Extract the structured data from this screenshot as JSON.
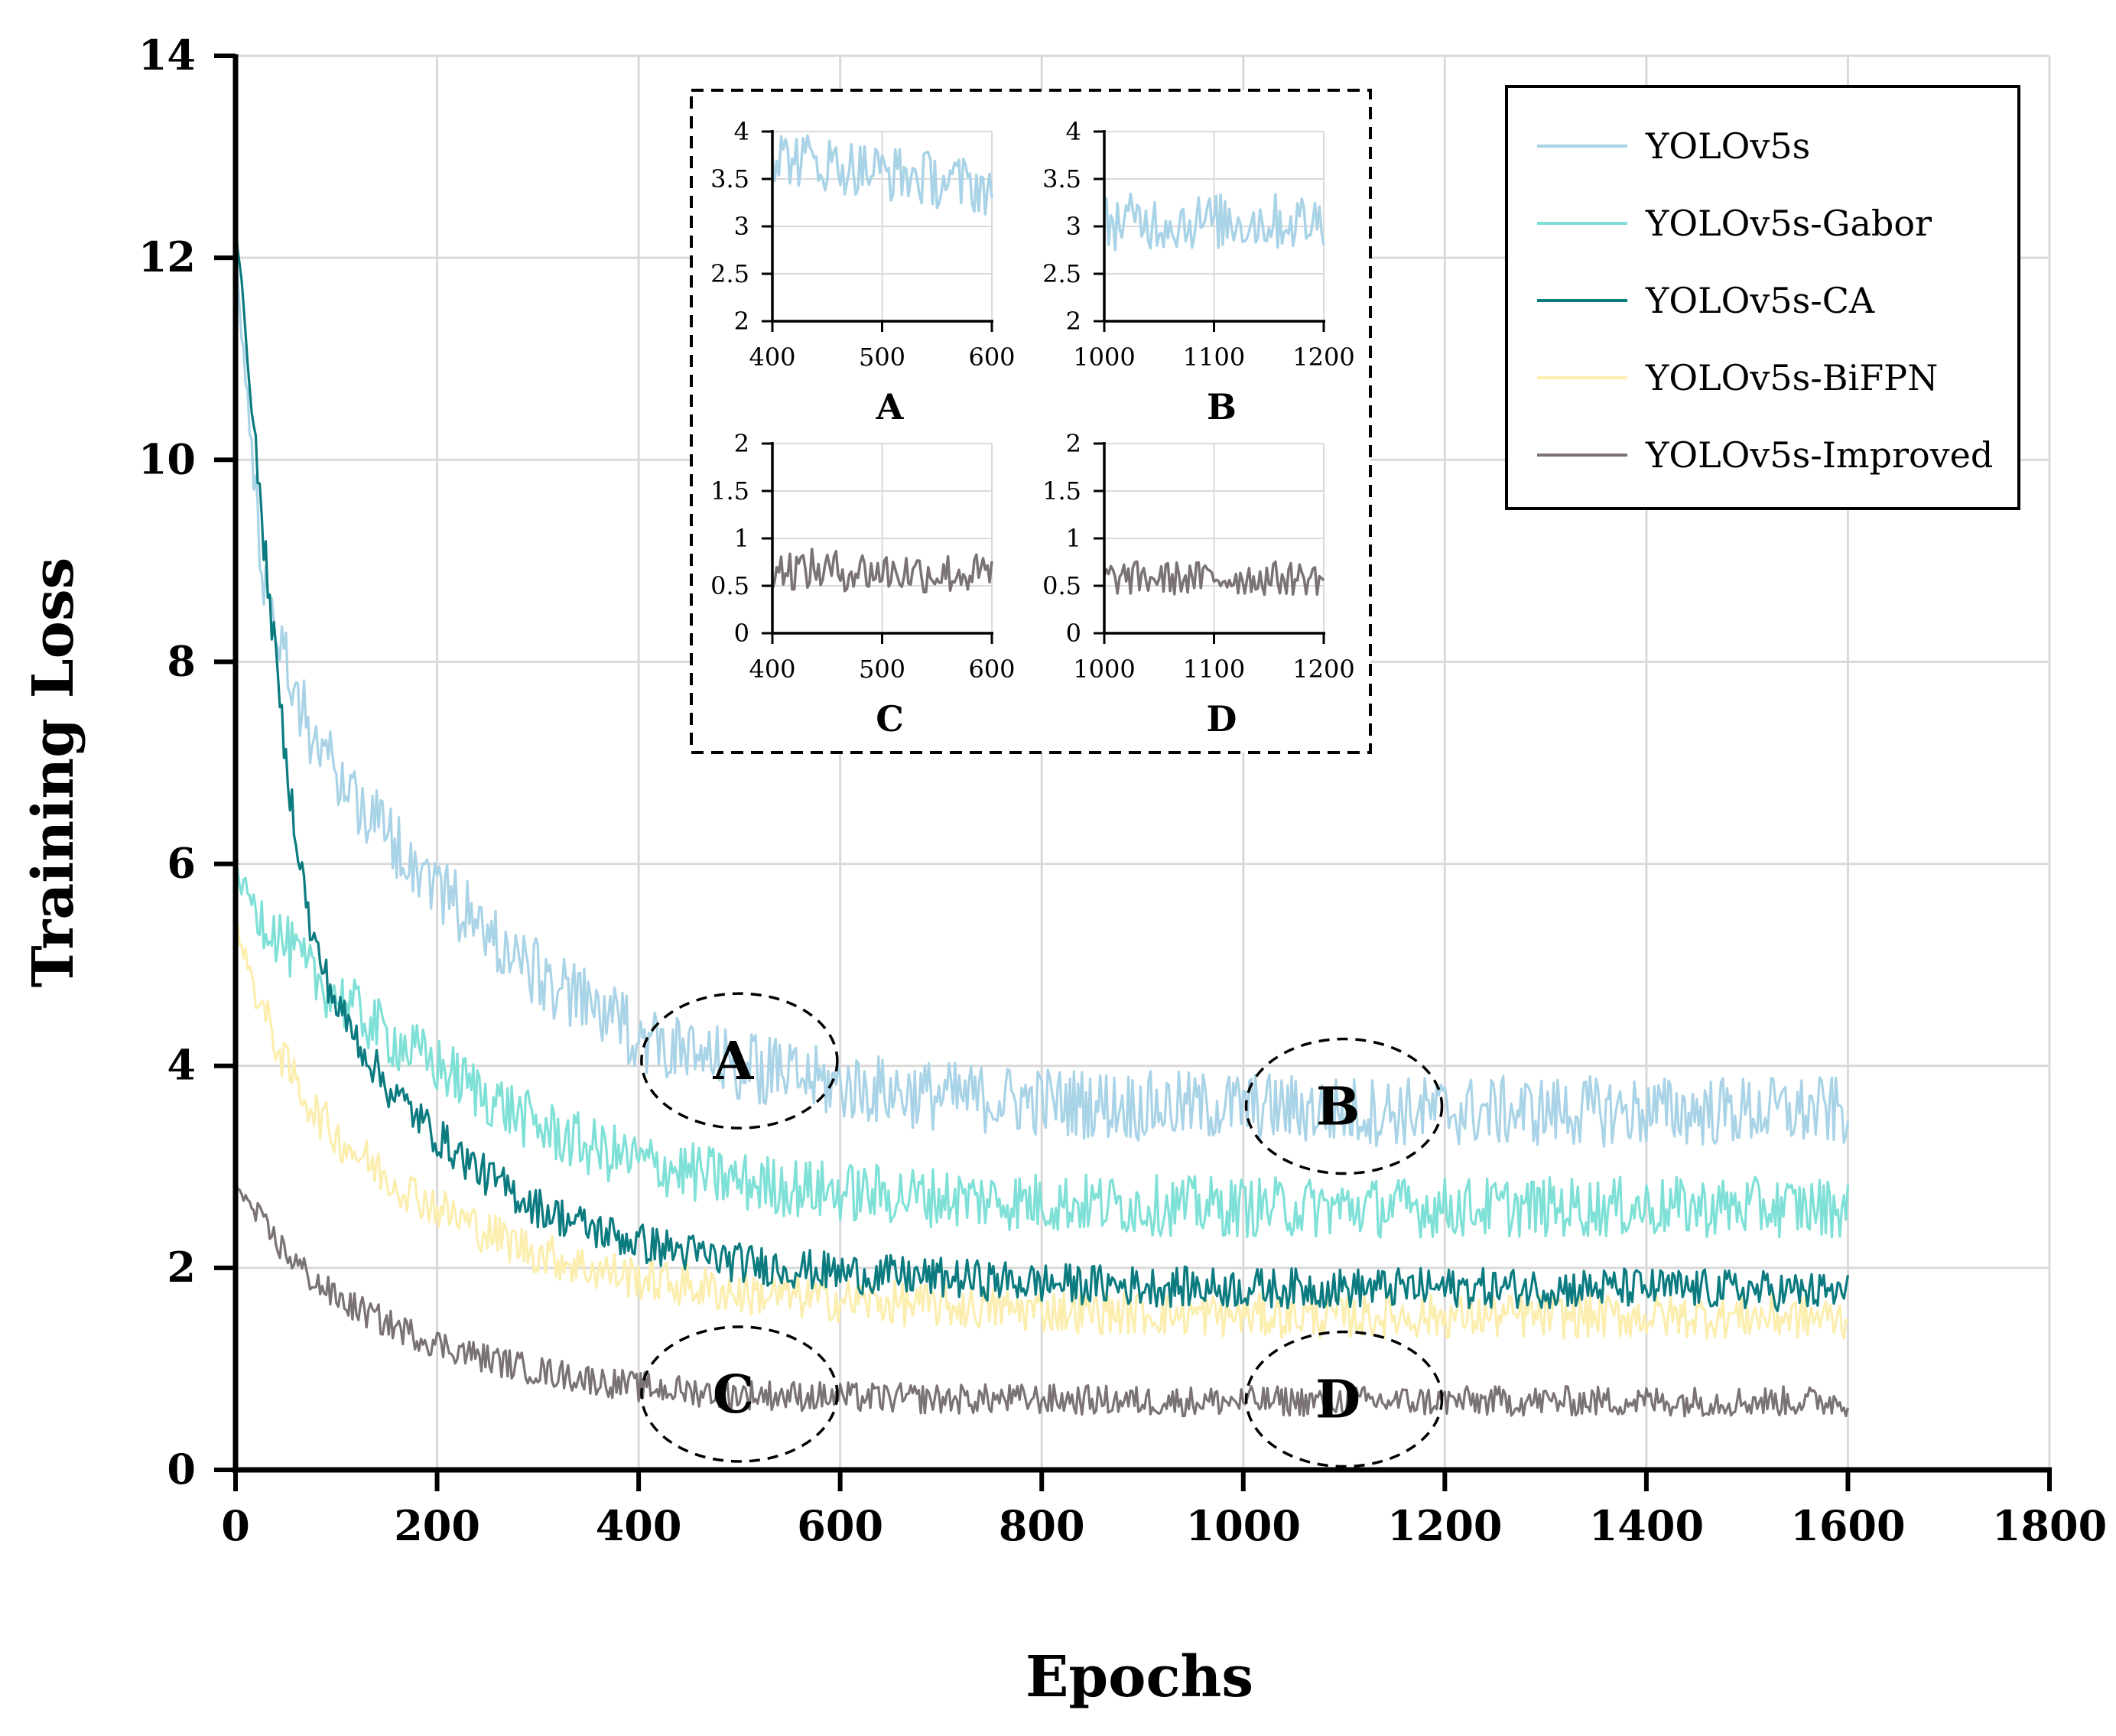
{
  "chart_data": {
    "type": "line",
    "title": "",
    "xlabel": "Epochs",
    "ylabel": "Training Loss",
    "xlim": [
      0,
      1800
    ],
    "ylim": [
      0,
      14
    ],
    "x_ticks": [
      "0",
      "200",
      "400",
      "600",
      "800",
      "1000",
      "1200",
      "1400",
      "1600",
      "1800"
    ],
    "y_ticks": [
      "0",
      "2",
      "4",
      "6",
      "8",
      "10",
      "12",
      "14"
    ],
    "grid": true,
    "legend_position": "top-right",
    "x": [
      0,
      25,
      50,
      75,
      100,
      150,
      200,
      250,
      300,
      350,
      400,
      450,
      500,
      600,
      700,
      800,
      900,
      1000,
      1100,
      1200,
      1300,
      1400,
      1500,
      1600
    ],
    "series": [
      {
        "name": "YOLOv5s",
        "color": "#a9d3e6",
        "noise": 0.35,
        "values": [
          12.0,
          9.0,
          8.0,
          7.3,
          6.9,
          6.3,
          5.8,
          5.3,
          4.9,
          4.6,
          4.3,
          4.1,
          4.0,
          3.8,
          3.7,
          3.65,
          3.6,
          3.6,
          3.55,
          3.55,
          3.55,
          3.55,
          3.55,
          3.55
        ]
      },
      {
        "name": "YOLOv5s-Gabor",
        "color": "#7ee0d6",
        "noise": 0.3,
        "values": [
          5.9,
          5.5,
          5.2,
          4.9,
          4.7,
          4.3,
          4.0,
          3.7,
          3.4,
          3.2,
          3.05,
          2.95,
          2.85,
          2.75,
          2.7,
          2.65,
          2.62,
          2.6,
          2.6,
          2.6,
          2.6,
          2.6,
          2.6,
          2.6
        ]
      },
      {
        "name": "YOLOv5s-CA",
        "color": "#0b7b80",
        "noise": 0.2,
        "values": [
          12.4,
          9.5,
          7.0,
          5.3,
          4.6,
          3.8,
          3.3,
          2.9,
          2.6,
          2.4,
          2.25,
          2.15,
          2.05,
          1.95,
          1.9,
          1.85,
          1.82,
          1.8,
          1.8,
          1.8,
          1.8,
          1.8,
          1.78,
          1.75
        ]
      },
      {
        "name": "YOLOv5s-BiFPN",
        "color": "#fbeeae",
        "noise": 0.22,
        "values": [
          5.4,
          4.6,
          4.0,
          3.6,
          3.3,
          2.9,
          2.6,
          2.35,
          2.15,
          2.0,
          1.9,
          1.82,
          1.75,
          1.68,
          1.62,
          1.58,
          1.55,
          1.53,
          1.52,
          1.52,
          1.52,
          1.52,
          1.52,
          1.5
        ]
      },
      {
        "name": "YOLOv5s-Improved",
        "color": "#7a7274",
        "noise": 0.15,
        "values": [
          2.85,
          2.45,
          2.15,
          1.9,
          1.7,
          1.45,
          1.25,
          1.1,
          0.98,
          0.9,
          0.82,
          0.78,
          0.75,
          0.72,
          0.7,
          0.7,
          0.68,
          0.68,
          0.68,
          0.68,
          0.68,
          0.68,
          0.68,
          0.68
        ]
      }
    ],
    "region_labels": [
      {
        "label": "A",
        "x": 500,
        "y": 4.05
      },
      {
        "label": "B",
        "x": 1100,
        "y": 3.6
      },
      {
        "label": "C",
        "x": 500,
        "y": 0.75
      },
      {
        "label": "D",
        "x": 1100,
        "y": 0.7
      }
    ],
    "insets": [
      {
        "label": "A",
        "series": "YOLOv5s",
        "xlim": [
          400,
          600
        ],
        "ylim": [
          2,
          4
        ],
        "x_ticks": [
          "400",
          "500",
          "600"
        ],
        "y_ticks": [
          "2",
          "2.5",
          "3",
          "3.5",
          "4"
        ],
        "start": 3.75,
        "end": 3.4,
        "noise": 0.3
      },
      {
        "label": "B",
        "series": "YOLOv5s",
        "xlim": [
          1000,
          1200
        ],
        "ylim": [
          2,
          4
        ],
        "x_ticks": [
          "1000",
          "1100",
          "1200"
        ],
        "y_ticks": [
          "2",
          "2.5",
          "3",
          "3.5",
          "4"
        ],
        "start": 3.05,
        "end": 3.05,
        "noise": 0.3
      },
      {
        "label": "C",
        "series": "YOLOv5s-Improved",
        "xlim": [
          400,
          600
        ],
        "ylim": [
          0,
          2
        ],
        "x_ticks": [
          "400",
          "500",
          "600"
        ],
        "y_ticks": [
          "0",
          "0.5",
          "1",
          "1.5",
          "2"
        ],
        "start": 0.68,
        "end": 0.62,
        "noise": 0.22
      },
      {
        "label": "D",
        "series": "YOLOv5s-Improved",
        "xlim": [
          1000,
          1200
        ],
        "ylim": [
          0,
          2
        ],
        "x_ticks": [
          "1000",
          "1100",
          "1200"
        ],
        "y_ticks": [
          "0",
          "0.5",
          "1",
          "1.5",
          "2"
        ],
        "start": 0.58,
        "end": 0.58,
        "noise": 0.18
      }
    ]
  }
}
